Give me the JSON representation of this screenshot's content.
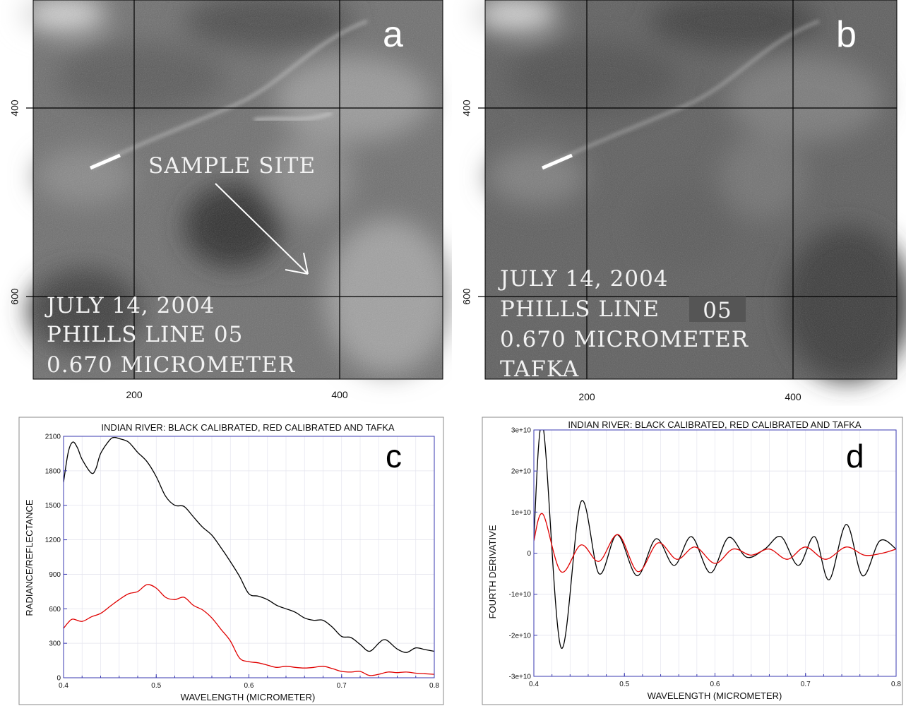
{
  "panels": {
    "a": {
      "label": "a",
      "annotation": "SAMPLE SITE",
      "overlay_lines": [
        "JULY 14, 2004",
        "PHILLS LINE 05",
        "0.670 MICROMETER"
      ],
      "x_ticks": [
        "200",
        "400"
      ],
      "y_ticks": [
        "400",
        "600"
      ]
    },
    "b": {
      "label": "b",
      "overlay_lines": [
        "JULY 14, 2004",
        "PHILLS LINE ",
        "0.670 MICROMETER",
        "TAFKA"
      ],
      "line_badge": "05",
      "x_ticks": [
        "200",
        "400"
      ],
      "y_ticks": [
        "400",
        "600"
      ]
    }
  },
  "colors": {
    "black_series": "#000000",
    "red_series": "#e00000",
    "frame": "#3a3ab0",
    "grid": "#e4e4ee"
  },
  "chart_data": [
    {
      "id": "c",
      "label": "c",
      "type": "line",
      "title": "INDIAN RIVER: BLACK CALIBRATED, RED CALIBRATED AND TAFKA",
      "xlabel": "WAVELENGTH (MICROMETER)",
      "ylabel": "RADIANCE/REFLECTANCE",
      "xlim": [
        0.4,
        0.8
      ],
      "ylim": [
        0,
        2100
      ],
      "x_ticks": [
        "0.4",
        "0.5",
        "0.6",
        "0.7",
        "0.8"
      ],
      "y_ticks": [
        "0",
        "300",
        "600",
        "900",
        "1200",
        "1500",
        "1800",
        "2100"
      ],
      "grid": true,
      "series": [
        {
          "color": "#000000",
          "x": [
            0.4,
            0.405,
            0.41,
            0.415,
            0.42,
            0.43,
            0.435,
            0.44,
            0.45,
            0.455,
            0.46,
            0.47,
            0.48,
            0.49,
            0.5,
            0.51,
            0.52,
            0.53,
            0.54,
            0.55,
            0.56,
            0.57,
            0.58,
            0.59,
            0.6,
            0.61,
            0.62,
            0.63,
            0.64,
            0.65,
            0.66,
            0.67,
            0.68,
            0.69,
            0.7,
            0.71,
            0.72,
            0.73,
            0.74,
            0.745,
            0.75,
            0.76,
            0.77,
            0.78,
            0.79,
            0.8
          ],
          "y": [
            1700,
            1960,
            2050,
            2000,
            1900,
            1780,
            1820,
            1950,
            2070,
            2090,
            2080,
            2050,
            1960,
            1880,
            1750,
            1580,
            1500,
            1490,
            1400,
            1310,
            1240,
            1130,
            1010,
            880,
            730,
            710,
            680,
            630,
            600,
            570,
            520,
            500,
            500,
            440,
            360,
            350,
            290,
            230,
            300,
            330,
            320,
            250,
            220,
            260,
            245,
            230
          ]
        },
        {
          "color": "#e00000",
          "x": [
            0.4,
            0.405,
            0.41,
            0.42,
            0.43,
            0.44,
            0.45,
            0.46,
            0.47,
            0.48,
            0.49,
            0.5,
            0.51,
            0.52,
            0.53,
            0.54,
            0.55,
            0.56,
            0.57,
            0.58,
            0.59,
            0.6,
            0.61,
            0.62,
            0.63,
            0.64,
            0.65,
            0.66,
            0.67,
            0.68,
            0.69,
            0.7,
            0.71,
            0.72,
            0.73,
            0.74,
            0.75,
            0.76,
            0.77,
            0.78,
            0.79,
            0.8
          ],
          "y": [
            430,
            480,
            510,
            490,
            530,
            560,
            620,
            680,
            730,
            750,
            810,
            780,
            700,
            680,
            700,
            630,
            590,
            520,
            420,
            320,
            170,
            140,
            130,
            110,
            90,
            100,
            90,
            85,
            90,
            100,
            80,
            55,
            50,
            55,
            20,
            30,
            50,
            45,
            50,
            40,
            35,
            30
          ]
        }
      ]
    },
    {
      "id": "d",
      "label": "d",
      "type": "line",
      "title": "INDIAN RIVER: BLACK CALIBRATED, RED CALIBRATED AND TAFKA",
      "xlabel": "WAVELENGTH (MICROMETER)",
      "ylabel": "FOURTH DERIVATIVE",
      "xlim": [
        0.4,
        0.8
      ],
      "ylim": [
        -30000000000.0,
        30000000000.0
      ],
      "x_ticks": [
        "0.4",
        "0.5",
        "0.6",
        "0.7",
        "0.8"
      ],
      "y_ticks": [
        "-3e+10",
        "-2e+10",
        "-1e+10",
        "0",
        "1e+10",
        "2e+10",
        "3e+10"
      ],
      "grid": true,
      "series": [
        {
          "color": "#000000",
          "x": [
            0.4,
            0.41,
            0.43,
            0.452,
            0.472,
            0.492,
            0.514,
            0.535,
            0.555,
            0.574,
            0.595,
            0.615,
            0.635,
            0.655,
            0.673,
            0.692,
            0.71,
            0.726,
            0.745,
            0.763,
            0.782,
            0.8
          ],
          "y": [
            4000000000.0,
            31000000000.0,
            -23000000000.0,
            12500000000.0,
            -5000000000.0,
            4500000000.0,
            -5500000000.0,
            3500000000.0,
            -3000000000.0,
            4000000000.0,
            -4800000000.0,
            3800000000.0,
            -1000000000.0,
            1000000000.0,
            4000000000.0,
            -3000000000.0,
            4000000000.0,
            -6500000000.0,
            7000000000.0,
            -5500000000.0,
            3000000000.0,
            1000000000.0
          ]
        },
        {
          "color": "#e00000",
          "x": [
            0.4,
            0.41,
            0.43,
            0.452,
            0.472,
            0.493,
            0.515,
            0.537,
            0.558,
            0.578,
            0.6,
            0.62,
            0.64,
            0.66,
            0.68,
            0.7,
            0.722,
            0.745,
            0.765,
            0.785,
            0.8
          ],
          "y": [
            3000000000.0,
            9500000000.0,
            -4500000000.0,
            2000000000.0,
            -2000000000.0,
            4500000000.0,
            -4500000000.0,
            2500000000.0,
            -1500000000.0,
            1500000000.0,
            -2500000000.0,
            1000000000.0,
            -500000000.0,
            1000000000.0,
            -1500000000.0,
            1500000000.0,
            -1500000000.0,
            1500000000.0,
            -500000000.0,
            0,
            1000000000.0
          ]
        }
      ]
    }
  ]
}
